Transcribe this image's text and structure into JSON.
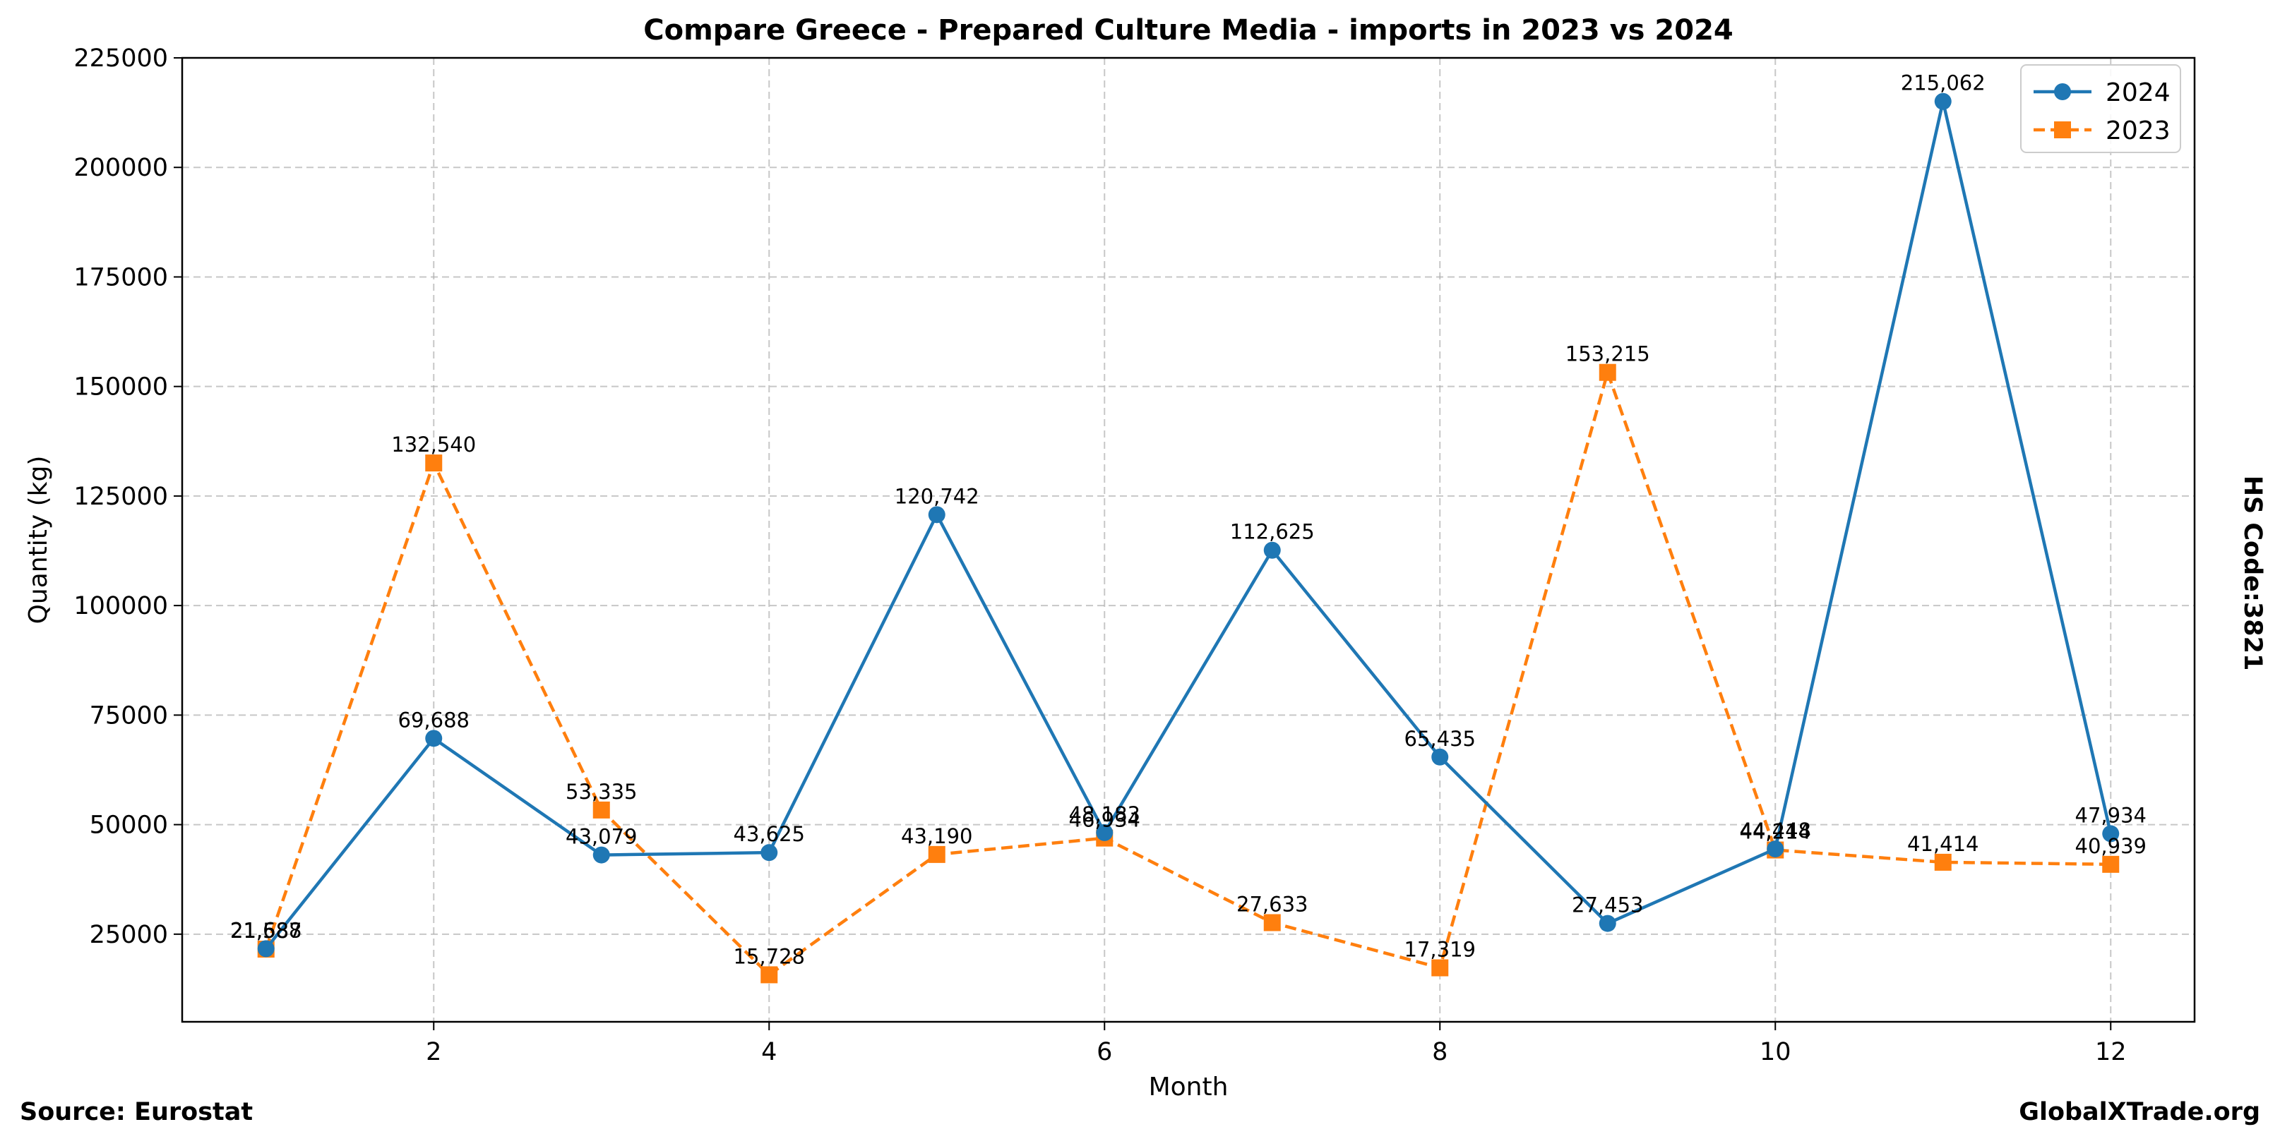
{
  "chart_data": {
    "type": "line",
    "title": "Compare Greece - Prepared Culture Media - imports in 2023 vs 2024",
    "xlabel": "Month",
    "ylabel": "Quantity (kg)",
    "xlim": [
      0.5,
      12.5
    ],
    "ylim": [
      5000,
      225000
    ],
    "x_ticks": [
      2,
      4,
      6,
      8,
      10,
      12
    ],
    "x_tick_labels": [
      "2",
      "4",
      "6",
      "8",
      "10",
      "12"
    ],
    "y_ticks": [
      25000,
      50000,
      75000,
      100000,
      125000,
      150000,
      175000,
      200000,
      225000
    ],
    "y_tick_labels": [
      "25000",
      "50000",
      "75000",
      "100000",
      "125000",
      "150000",
      "175000",
      "200000",
      "225000"
    ],
    "grid": true,
    "legend_position": "top-right",
    "x": [
      1,
      2,
      3,
      4,
      5,
      6,
      7,
      8,
      9,
      10,
      11,
      12
    ],
    "series": [
      {
        "name": "2024",
        "color": "#1f77b4",
        "marker": "circle",
        "line_style": "solid",
        "values": [
          21688,
          69688,
          43079,
          43625,
          120742,
          48183,
          112625,
          65435,
          27453,
          44448,
          215062,
          47934
        ],
        "labels": [
          "21,688",
          "69,688",
          "43,079",
          "43,625",
          "120,742",
          "48,183",
          "112,625",
          "65,435",
          "27,453",
          "44,448",
          "215,062",
          "47,934"
        ]
      },
      {
        "name": "2023",
        "color": "#ff7f0e",
        "marker": "square",
        "line_style": "dashed",
        "values": [
          21587,
          132540,
          53335,
          15728,
          43190,
          46934,
          27633,
          17319,
          153215,
          44214,
          41414,
          40939
        ],
        "labels": [
          "21,587",
          "132,540",
          "53,335",
          "15,728",
          "43,190",
          "46,934",
          "27,633",
          "17,319",
          "153,215",
          "44,214",
          "41,414",
          "40,939"
        ]
      }
    ]
  },
  "page": {
    "source": "Source: Eurostat",
    "brand": "GlobalXTrade.org",
    "hs_code": "HS Code:3821"
  }
}
